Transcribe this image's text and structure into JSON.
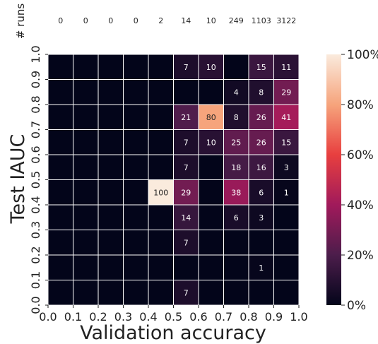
{
  "chart_data": {
    "type": "heatmap",
    "title": "",
    "xlabel": "Validation accuracy",
    "ylabel": "Test IAUC",
    "runs_label": "# runs",
    "x_ticks": [
      "0.0",
      "0.1",
      "0.2",
      "0.3",
      "0.4",
      "0.5",
      "0.6",
      "0.7",
      "0.8",
      "0.9",
      "1.0"
    ],
    "y_ticks": [
      "0.0",
      "0.1",
      "0.2",
      "0.3",
      "0.4",
      "0.5",
      "0.6",
      "0.7",
      "0.8",
      "0.9",
      "1.0"
    ],
    "run_counts": [
      0,
      0,
      0,
      0,
      2,
      14,
      10,
      249,
      1103,
      3122
    ],
    "rows_top_to_bottom": [
      [
        null,
        null,
        null,
        null,
        null,
        7,
        10,
        null,
        15,
        11
      ],
      [
        null,
        null,
        null,
        null,
        null,
        null,
        null,
        4,
        8,
        29
      ],
      [
        null,
        null,
        null,
        null,
        null,
        21,
        80,
        8,
        26,
        41
      ],
      [
        null,
        null,
        null,
        null,
        null,
        7,
        10,
        25,
        26,
        15
      ],
      [
        null,
        null,
        null,
        null,
        null,
        7,
        null,
        18,
        16,
        3
      ],
      [
        null,
        null,
        null,
        null,
        100,
        29,
        null,
        38,
        6,
        1
      ],
      [
        null,
        null,
        null,
        null,
        null,
        14,
        null,
        6,
        3,
        null
      ],
      [
        null,
        null,
        null,
        null,
        null,
        7,
        null,
        null,
        null,
        null
      ],
      [
        null,
        null,
        null,
        null,
        null,
        null,
        null,
        null,
        1,
        null
      ],
      [
        null,
        null,
        null,
        null,
        null,
        7,
        null,
        null,
        null,
        null
      ]
    ],
    "value_range": [
      0,
      100
    ],
    "colorbar_ticks": [
      "0%",
      "20%",
      "40%",
      "60%",
      "80%",
      "100%"
    ],
    "colormap_stops": [
      "#03051a",
      "#4c1d4b",
      "#a11a5b",
      "#e83f3f",
      "#f6a47c",
      "#faebdd"
    ]
  }
}
